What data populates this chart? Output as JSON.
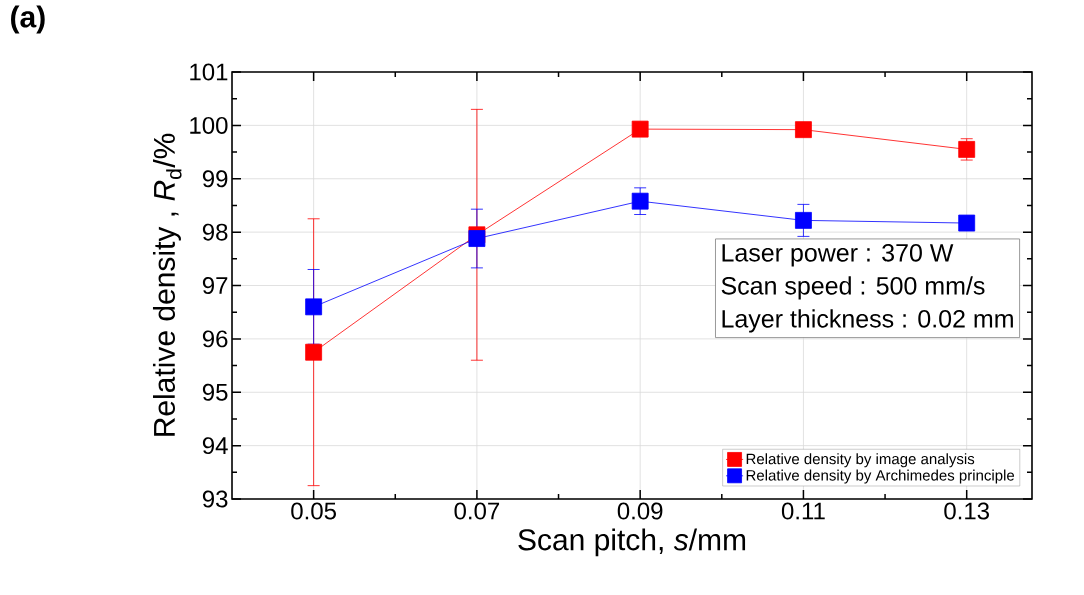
{
  "chart_data": {
    "type": "line",
    "xlabel": "Scan pitch, *s*/mm",
    "ylabel": "Relative density , *R*$_{d}$/%",
    "x": [
      0.05,
      0.07,
      0.09,
      0.11,
      0.13
    ],
    "series": [
      {
        "name": "Relative density by image analysis",
        "color": "#ff0000",
        "values": [
          95.75,
          97.95,
          99.93,
          99.92,
          99.55
        ],
        "errors": [
          2.5,
          2.35,
          null,
          null,
          0.2
        ]
      },
      {
        "name": "Relative density by Archimedes principle",
        "color": "#0000ff",
        "values": [
          96.6,
          97.88,
          98.58,
          98.22,
          98.17
        ],
        "errors": [
          0.7,
          0.55,
          0.25,
          0.3,
          null
        ]
      }
    ],
    "xlim": [
      0.04,
      0.138
    ],
    "ylim": [
      93,
      101
    ],
    "xticks": [
      0.05,
      0.07,
      0.09,
      0.11,
      0.13
    ],
    "yticks": [
      93,
      94,
      95,
      96,
      97,
      98,
      99,
      100,
      101
    ],
    "grid": true,
    "legend": "bottom right",
    "marker": "square",
    "line_style": "solid",
    "annotations": [
      "(a)",
      "Laser power : 370 W",
      "Scan speed : 500 mm/s",
      "Layer thickness : 0.02 mm"
    ]
  }
}
